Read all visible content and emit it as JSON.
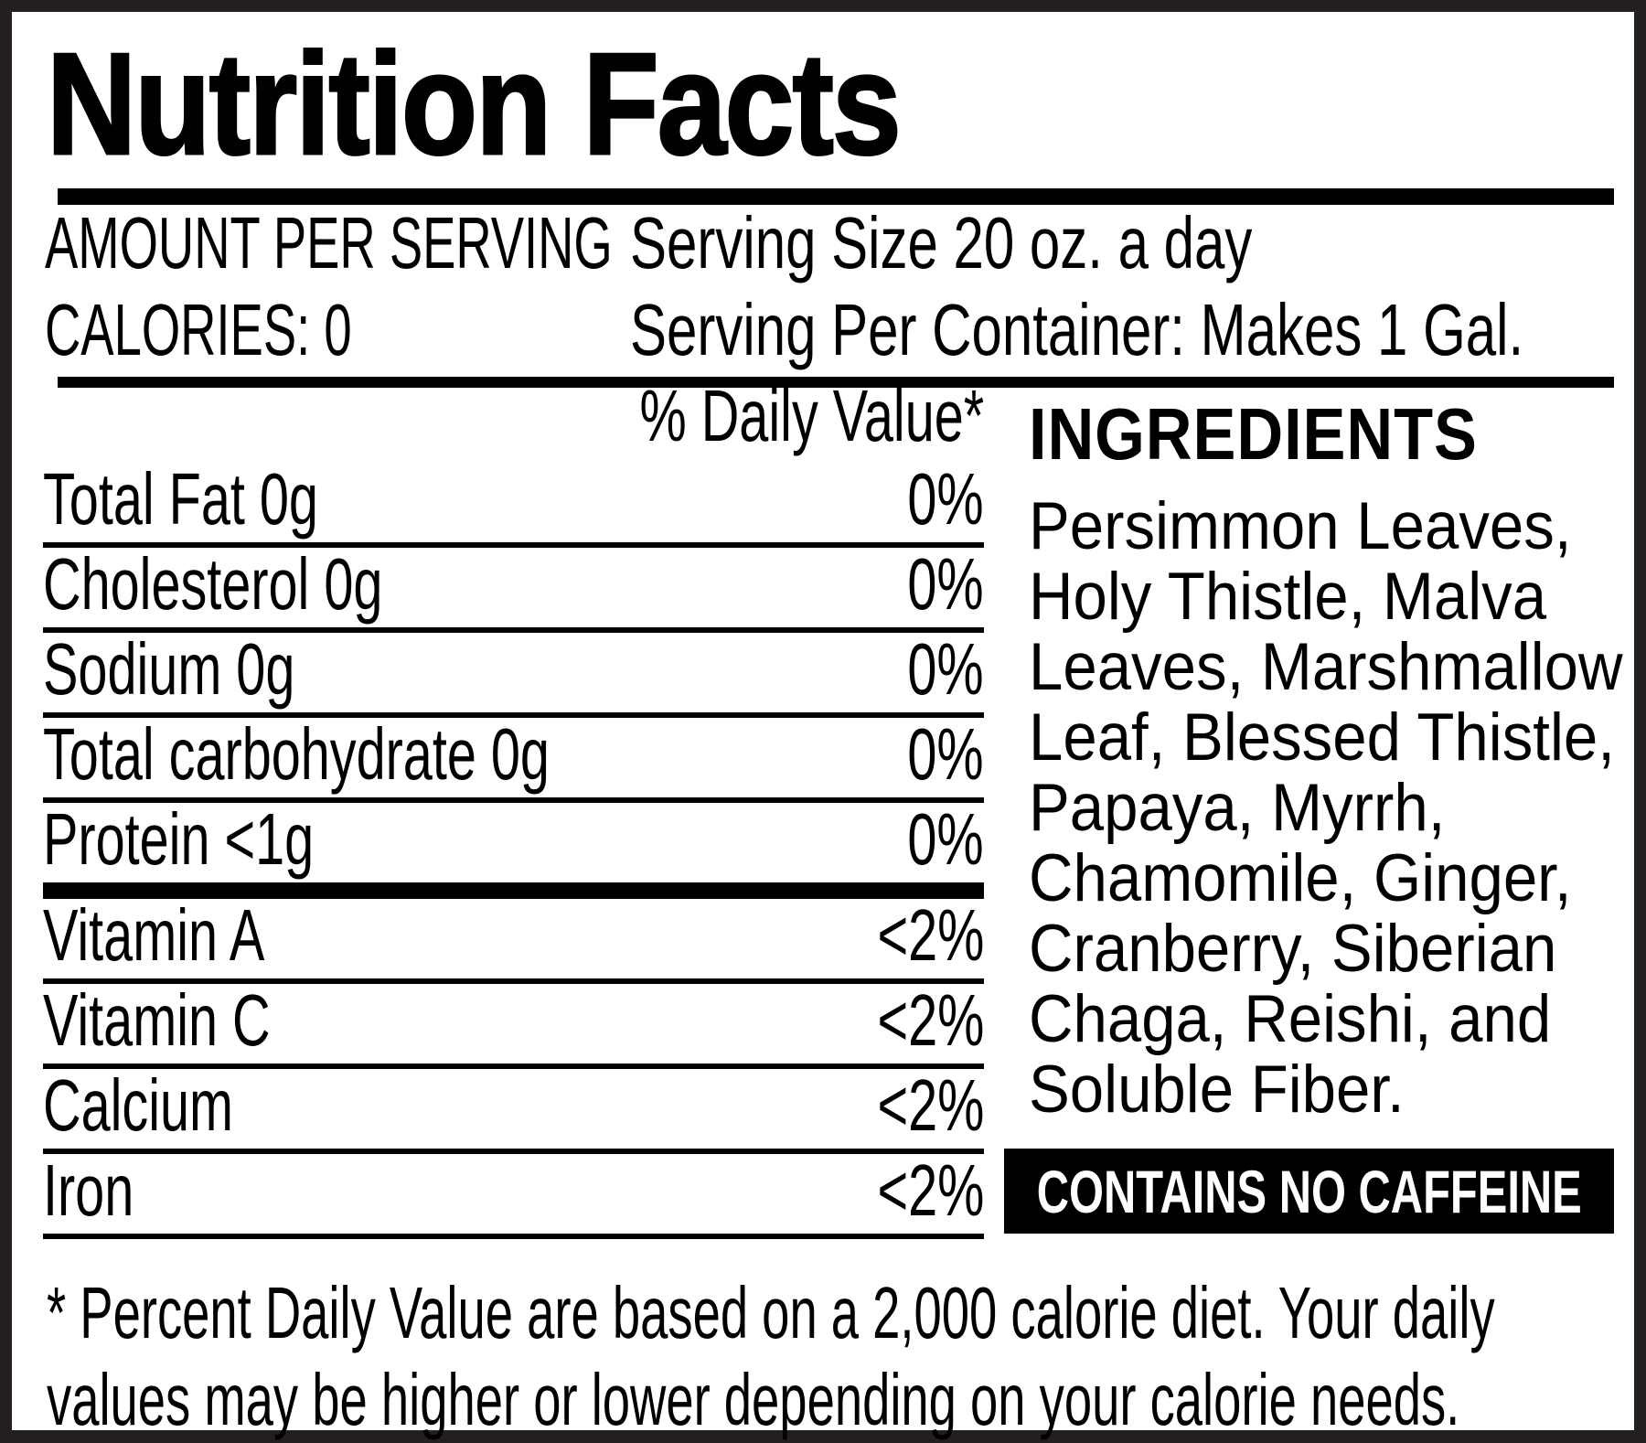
{
  "label": {
    "title": "Nutrition Facts",
    "header": {
      "amount_per_serving": "AMOUNT PER SERVING",
      "calories": "CALORIES: 0",
      "serving_size": "Serving Size 20 oz. a day",
      "servings_per_container": "Serving Per Container: Makes 1 Gal."
    },
    "daily_value_header": "% Daily Value*",
    "nutrients": [
      {
        "name": "Total Fat 0g",
        "value": "0%"
      },
      {
        "name": "Cholesterol 0g",
        "value": "0%"
      },
      {
        "name": "Sodium 0g",
        "value": "0%"
      },
      {
        "name": "Total carbohydrate 0g",
        "value": "0%"
      },
      {
        "name": "Protein <1g",
        "value": "0%"
      },
      {
        "name": "Vitamin A",
        "value": "<2%"
      },
      {
        "name": "Vitamin C",
        "value": "<2%"
      },
      {
        "name": "Calcium",
        "value": "<2%"
      },
      {
        "name": "Iron",
        "value": "<2%"
      }
    ],
    "ingredients": {
      "heading": "INGREDIENTS",
      "lines": [
        "Persimmon Leaves,",
        "Holy Thistle, Malva",
        "Leaves, Marshmallow",
        "Leaf, Blessed Thistle,",
        "Papaya, Myrrh,",
        "Chamomile, Ginger,",
        "Cranberry, Siberian",
        "Chaga, Reishi, and",
        "Soluble Fiber."
      ]
    },
    "caffeine_notice": "CONTAINS NO CAFFEINE",
    "footnote": {
      "line1": "* Percent Daily Value are based on a 2,000 calorie diet. Your daily",
      "line2": "values may be higher or lower depending on your calorie needs."
    },
    "colors": {
      "ink": "#000000",
      "frame": "#231f20",
      "paper": "#ffffff"
    }
  }
}
